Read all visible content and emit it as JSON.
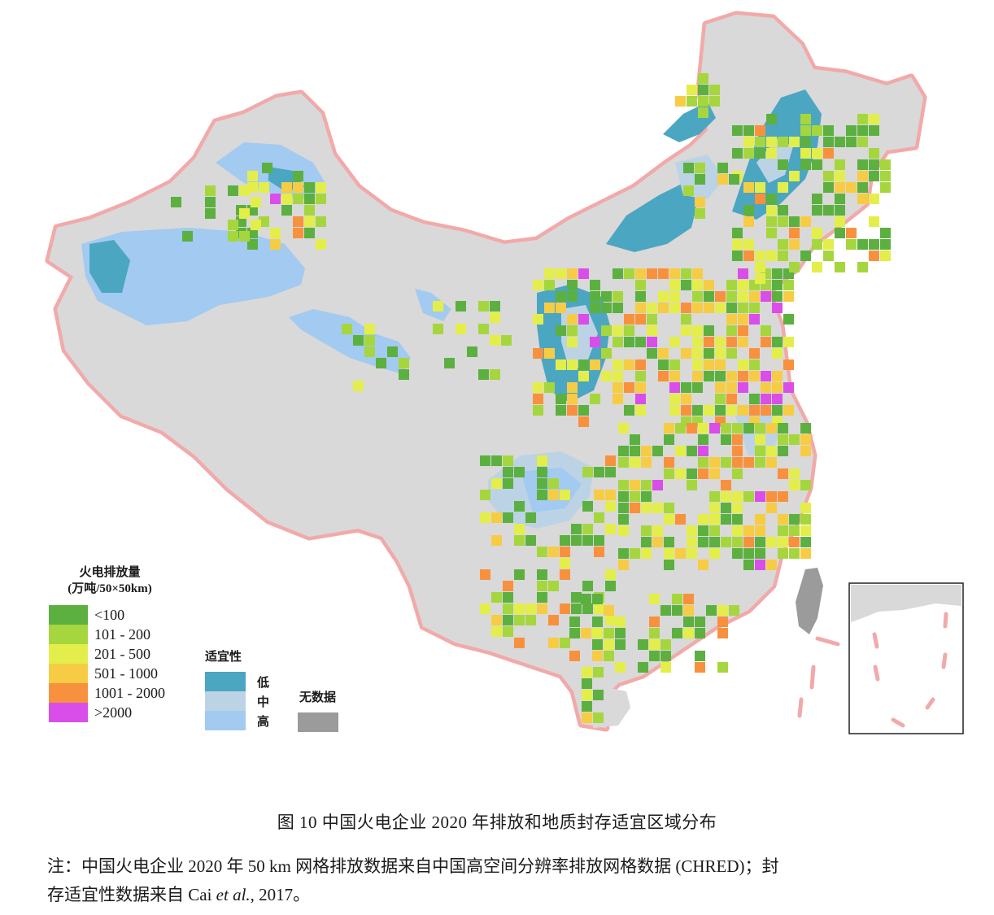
{
  "map": {
    "colors": {
      "land": "#d9d9d9",
      "border_glow": "#f2a9a9",
      "suit_low": "#4ba6c2",
      "suit_mid": "#bcd3e6",
      "suit_high": "#a3caf0",
      "no_data": "#9b9b9b",
      "em_lt100": "#5cb040",
      "em_101_200": "#a6d63e",
      "em_201_500": "#e4ee4a",
      "em_501_1000": "#f7cc45",
      "em_1001_2000": "#f8913d",
      "em_gt2000": "#d94ee8"
    },
    "inset_label": "south-china-sea-inset"
  },
  "legend_emission": {
    "title_line1": "火电排放量",
    "title_line2": "(万吨/50×50km)",
    "items": [
      {
        "label": "<100",
        "color": "#5cb040"
      },
      {
        "label": "101 - 200",
        "color": "#a6d63e"
      },
      {
        "label": "201 - 500",
        "color": "#e4ee4a"
      },
      {
        "label": "501 - 1000",
        "color": "#f7cc45"
      },
      {
        "label": "1001 - 2000",
        "color": "#f8913d"
      },
      {
        "label": ">2000",
        "color": "#d94ee8"
      }
    ]
  },
  "legend_suitability": {
    "title": "适宜性",
    "items": [
      {
        "label": "低",
        "color": "#4ba6c2"
      },
      {
        "label": "中",
        "color": "#bcd3e6"
      },
      {
        "label": "高",
        "color": "#a3caf0"
      }
    ]
  },
  "legend_nodata": {
    "title": "无数据",
    "color": "#9b9b9b"
  },
  "caption": {
    "text": "图 10    中国火电企业 2020 年排放和地质封存适宜区域分布"
  },
  "note": {
    "line1": "注：中国火电企业 2020 年 50 km 网格排放数据来自中国高空间分辨率排放网格数据 (CHRED)；封",
    "line2_prefix": "存适宜性数据来自 Cai ",
    "line2_italic": "et al.",
    "line2_suffix": ", 2017。"
  }
}
